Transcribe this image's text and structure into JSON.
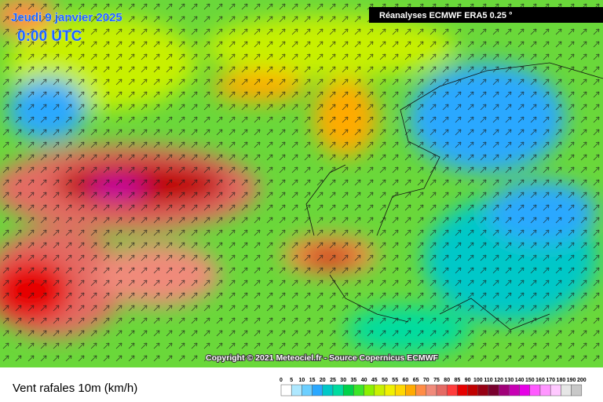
{
  "header": {
    "date": "Jeudi 9 janvier 2025",
    "time": "0:00 UTC",
    "source": "Réanalyses ECMWF ERA5 0.25 °"
  },
  "copyright": "Copyright © 2021 Meteociel.fr - Source Copernicus ECMWF",
  "legend": {
    "title": "Vent rafales 10m (km/h)",
    "ticks": [
      0,
      5,
      10,
      15,
      20,
      25,
      30,
      35,
      40,
      45,
      50,
      55,
      60,
      65,
      70,
      75,
      80,
      85,
      90,
      100,
      110,
      120,
      130,
      140,
      150,
      160,
      170,
      180,
      190,
      200
    ],
    "colors": [
      "#ffffff",
      "#aee8ff",
      "#6ccfff",
      "#2aa8ff",
      "#00c8c8",
      "#00dca0",
      "#00d24a",
      "#3ce628",
      "#8cf000",
      "#c8f000",
      "#f0f000",
      "#ffd700",
      "#ffaa00",
      "#ff8c46",
      "#f08a7a",
      "#e46a64",
      "#ff3c3c",
      "#e60000",
      "#c00000",
      "#960014",
      "#78002d",
      "#a00078",
      "#c800b4",
      "#e600e6",
      "#ff5aff",
      "#ff96ff",
      "#ffc8ff",
      "#e6e6e6",
      "#c8c8c8"
    ]
  }
}
